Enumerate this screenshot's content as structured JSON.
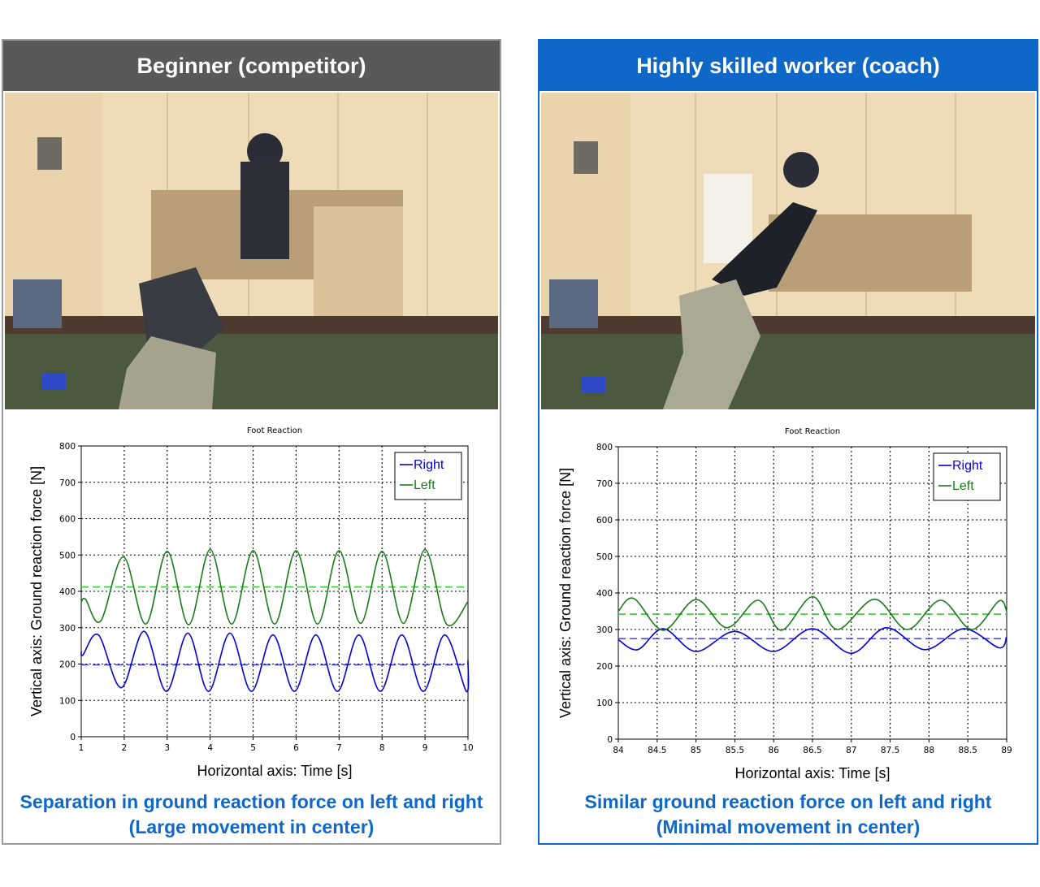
{
  "panels": {
    "left": {
      "header": "Beginner (competitor)",
      "caption_line1": "Separation in ground reaction force on left and right",
      "caption_line2": "(Large movement in center)",
      "accent_color": "#595959"
    },
    "right": {
      "header": "Highly skilled worker (coach)",
      "caption_line1": "Similar ground reaction force on left and right",
      "caption_line2": "(Minimal movement in center)",
      "accent_color": "#0f68c8"
    }
  },
  "chart_data": [
    {
      "type": "line",
      "title": "Foot Reaction",
      "xlabel": "Horizontal axis: Time [s]",
      "ylabel": "Vertical axis: Ground reaction force [N]",
      "xlim": [
        1,
        10
      ],
      "ylim": [
        0,
        800
      ],
      "xticks": [
        "1",
        "2",
        "3",
        "4",
        "5",
        "6",
        "7",
        "8",
        "9",
        "10"
      ],
      "yticks": [
        "0",
        "100",
        "200",
        "300",
        "400",
        "500",
        "600",
        "700",
        "800"
      ],
      "grid": true,
      "legend_position": "top-right",
      "series": [
        {
          "name": "Right",
          "color": "#0000dd",
          "mean": 198,
          "mean_color": "#4444ee",
          "x": [
            1.0,
            1.04,
            1.4,
            1.93,
            2.46,
            2.98,
            3.48,
            3.96,
            4.46,
            4.96,
            5.46,
            5.96,
            6.46,
            6.96,
            7.46,
            7.96,
            8.46,
            8.96,
            9.46,
            9.96,
            10.0
          ],
          "y": [
            235,
            225,
            280,
            135,
            290,
            125,
            285,
            125,
            285,
            125,
            280,
            125,
            280,
            125,
            280,
            125,
            280,
            125,
            280,
            125,
            210
          ]
        },
        {
          "name": "Left",
          "color": "#1a7a1a",
          "mean": 412,
          "mean_color": "#33cc33",
          "x": [
            1.0,
            1.1,
            1.45,
            1.98,
            2.5,
            3.0,
            3.5,
            4.0,
            4.5,
            5.0,
            5.5,
            6.0,
            6.5,
            7.0,
            7.5,
            8.0,
            8.5,
            9.0,
            9.5,
            10.0
          ],
          "y": [
            370,
            378,
            318,
            495,
            310,
            510,
            308,
            515,
            310,
            512,
            310,
            512,
            310,
            512,
            312,
            510,
            312,
            515,
            310,
            372
          ]
        }
      ]
    },
    {
      "type": "line",
      "title": "Foot Reaction",
      "xlabel": "Horizontal axis: Time [s]",
      "ylabel": "Vertical axis: Ground reaction force [N]",
      "xlim": [
        84,
        89
      ],
      "ylim": [
        0,
        800
      ],
      "xticks": [
        "84",
        "84.5",
        "85",
        "85.5",
        "86",
        "86.5",
        "87",
        "87.5",
        "88",
        "88.5",
        "89"
      ],
      "yticks": [
        "0",
        "100",
        "200",
        "300",
        "400",
        "500",
        "600",
        "700",
        "800"
      ],
      "grid": true,
      "legend_position": "top-right",
      "series": [
        {
          "name": "Right",
          "color": "#0000dd",
          "mean": 275,
          "mean_color": "#4444ee",
          "x": [
            84.0,
            84.25,
            84.58,
            85.0,
            85.5,
            86.0,
            86.5,
            87.0,
            87.45,
            87.95,
            88.45,
            88.9,
            89.0
          ],
          "y": [
            272,
            245,
            302,
            240,
            295,
            240,
            302,
            235,
            305,
            245,
            302,
            250,
            280
          ]
        },
        {
          "name": "Left",
          "color": "#1a7a1a",
          "mean": 342,
          "mean_color": "#33cc33",
          "x": [
            84.0,
            84.2,
            84.58,
            85.0,
            85.4,
            85.8,
            86.1,
            86.5,
            86.82,
            87.3,
            87.72,
            88.15,
            88.55,
            88.9,
            89.0
          ],
          "y": [
            350,
            385,
            298,
            382,
            305,
            380,
            298,
            390,
            300,
            383,
            300,
            380,
            300,
            378,
            350
          ]
        }
      ]
    }
  ]
}
